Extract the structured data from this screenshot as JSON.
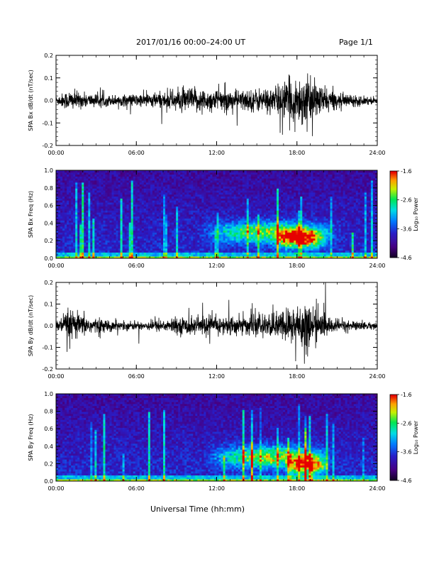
{
  "header": {
    "title": "2017/01/16  00:00–24:00 UT",
    "page": "Page 1/1"
  },
  "footer": {
    "xlabel": "Universal Time (hh:mm)"
  },
  "chart_data": [
    {
      "type": "line",
      "ylabel": "SPA Bx dB/dt (nT/sec)",
      "ylim": [
        -0.2,
        0.2
      ],
      "yticks": [
        "-0.2",
        "-0.1",
        "0.0",
        "0.1",
        "0.2"
      ],
      "xlim_hours": [
        0,
        24
      ],
      "xticks": [
        "00:00",
        "06:00",
        "12:00",
        "18:00",
        "24:00"
      ],
      "amplitude_profile": [
        {
          "t": 0,
          "a": 0.02
        },
        {
          "t": 1,
          "a": 0.05
        },
        {
          "t": 2,
          "a": 0.035
        },
        {
          "t": 4,
          "a": 0.025
        },
        {
          "t": 6,
          "a": 0.03
        },
        {
          "t": 8,
          "a": 0.04
        },
        {
          "t": 10,
          "a": 0.06
        },
        {
          "t": 12,
          "a": 0.05
        },
        {
          "t": 14,
          "a": 0.05
        },
        {
          "t": 16,
          "a": 0.06
        },
        {
          "t": 17.5,
          "a": 0.1
        },
        {
          "t": 18.5,
          "a": 0.12
        },
        {
          "t": 19.5,
          "a": 0.08
        },
        {
          "t": 21,
          "a": 0.035
        },
        {
          "t": 24,
          "a": 0.015
        }
      ]
    },
    {
      "type": "heatmap",
      "ylabel": "SPA Bx Freq (Hz)",
      "ylim": [
        0.0,
        1.0
      ],
      "yticks": [
        "0.0",
        "0.2",
        "0.4",
        "0.6",
        "0.8",
        "1.0"
      ],
      "xlim_hours": [
        0,
        24
      ],
      "xticks": [
        "00:00",
        "06:00",
        "12:00",
        "18:00",
        "24:00"
      ],
      "colorbar": {
        "label": "Log₁₀ Power",
        "range": [
          -4.6,
          -1.6
        ],
        "ticks": [
          "-1.6",
          "-2.6",
          "-3.6",
          "-4.6"
        ]
      },
      "activity": [
        {
          "t0": 10.5,
          "t1": 21.5,
          "f_center": 0.3,
          "f_width": 0.12,
          "strength": 0.55
        },
        {
          "t0": 16.0,
          "t1": 20.5,
          "f_center": 0.22,
          "f_width": 0.1,
          "strength": 0.75
        }
      ]
    },
    {
      "type": "line",
      "ylabel": "SPA By dB/dt (nT/sec)",
      "ylim": [
        -0.2,
        0.2
      ],
      "yticks": [
        "-0.2",
        "-0.1",
        "0.0",
        "0.1",
        "0.2"
      ],
      "xlim_hours": [
        0,
        24
      ],
      "xticks": [
        "00:00",
        "06:00",
        "12:00",
        "18:00",
        "24:00"
      ],
      "amplitude_profile": [
        {
          "t": 0,
          "a": 0.02
        },
        {
          "t": 1,
          "a": 0.08
        },
        {
          "t": 2,
          "a": 0.05
        },
        {
          "t": 4,
          "a": 0.025
        },
        {
          "t": 6,
          "a": 0.02
        },
        {
          "t": 8,
          "a": 0.03
        },
        {
          "t": 10,
          "a": 0.045
        },
        {
          "t": 12,
          "a": 0.045
        },
        {
          "t": 14,
          "a": 0.045
        },
        {
          "t": 16,
          "a": 0.055
        },
        {
          "t": 17.5,
          "a": 0.09
        },
        {
          "t": 18.5,
          "a": 0.13
        },
        {
          "t": 19.5,
          "a": 0.07
        },
        {
          "t": 21,
          "a": 0.03
        },
        {
          "t": 24,
          "a": 0.015
        }
      ]
    },
    {
      "type": "heatmap",
      "ylabel": "SPA By Freq (Hz)",
      "ylim": [
        0.0,
        1.0
      ],
      "yticks": [
        "0.0",
        "0.2",
        "0.4",
        "0.6",
        "0.8",
        "1.0"
      ],
      "xlim_hours": [
        0,
        24
      ],
      "xticks": [
        "00:00",
        "06:00",
        "12:00",
        "18:00",
        "24:00"
      ],
      "colorbar": {
        "label": "Log₁₀ Power",
        "range": [
          -4.6,
          -1.6
        ],
        "ticks": [
          "-1.6",
          "-2.6",
          "-3.6",
          "-4.6"
        ]
      },
      "activity": [
        {
          "t0": 11.0,
          "t1": 21.0,
          "f_center": 0.28,
          "f_width": 0.12,
          "strength": 0.6
        },
        {
          "t0": 17.0,
          "t1": 20.5,
          "f_center": 0.18,
          "f_width": 0.1,
          "strength": 0.75
        }
      ]
    }
  ]
}
